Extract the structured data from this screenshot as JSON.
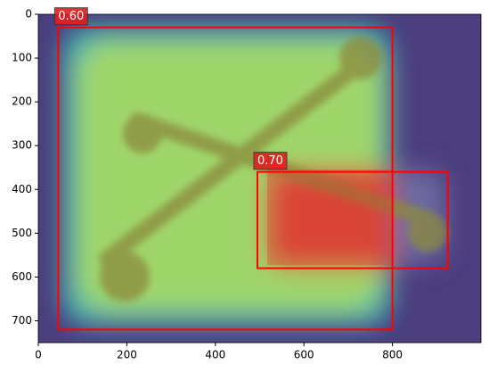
{
  "chart_data": {
    "type": "detection",
    "xlim": [
      0,
      1000
    ],
    "ylim": [
      750,
      0
    ],
    "xticks": [
      0,
      200,
      400,
      600,
      800
    ],
    "yticks": [
      0,
      100,
      200,
      300,
      400,
      500,
      600,
      700
    ],
    "boxes": [
      {
        "x0": 45,
        "y0": 30,
        "x1": 800,
        "y1": 720
      },
      {
        "x0": 495,
        "y0": 360,
        "x1": 925,
        "y1": 580
      }
    ],
    "values": [
      0.6,
      0.7
    ],
    "value_labels": [
      "0.60",
      "0.70"
    ],
    "color": "#ff0000"
  }
}
